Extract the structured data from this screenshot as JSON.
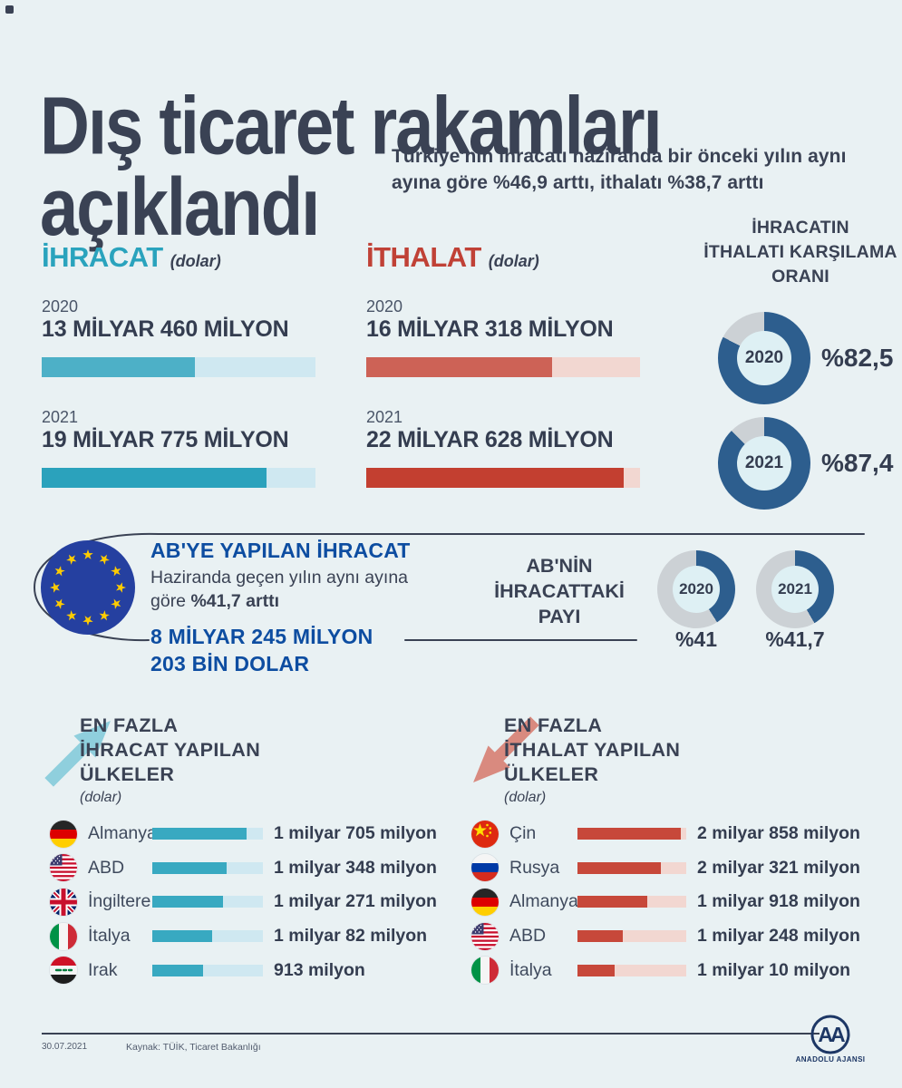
{
  "header": {
    "title_line1": "Dış ticaret rakamları",
    "title_line2": "açıklandı",
    "subtitle": "Türkiye'nin ihracatı haziranda bir önceki yılın aynı ayına göre %46,9 arttı, ithalatı %38,7 arttı"
  },
  "exports": {
    "label": "İHRACAT",
    "unit": "(dolar)",
    "years": [
      {
        "year": "2020",
        "value": "13 MİLYAR 460 MİLYON",
        "pct": 56
      },
      {
        "year": "2021",
        "value": "19 MİLYAR 775 MİLYON",
        "pct": 82
      }
    ]
  },
  "imports": {
    "label": "İTHALAT",
    "unit": "(dolar)",
    "years": [
      {
        "year": "2020",
        "value": "16 MİLYAR 318 MİLYON",
        "pct": 68
      },
      {
        "year": "2021",
        "value": "22 MİLYAR 628 MİLYON",
        "pct": 94
      }
    ]
  },
  "coverage": {
    "title_lines": [
      "İHRACATIN",
      "İTHALATI KARŞILAMA",
      "ORANI"
    ],
    "items": [
      {
        "year": "2020",
        "label": "%82,5",
        "pct": 82.5
      },
      {
        "year": "2021",
        "label": "%87,4",
        "pct": 87.4
      }
    ]
  },
  "eu": {
    "title": "AB'YE YAPILAN İHRACAT",
    "desc_normal": "Haziranda geçen yılın aynı ayına göre ",
    "desc_bold": "%41,7 arttı",
    "amount_line1": "8 MİLYAR 245 MİLYON",
    "amount_line2": "203 BİN DOLAR",
    "share_title_lines": [
      "AB'NİN",
      "İHRACATTAKİ",
      "PAYI"
    ],
    "share_items": [
      {
        "year": "2020",
        "label": "%41",
        "pct": 41
      },
      {
        "year": "2021",
        "label": "%41,7",
        "pct": 41.7
      }
    ]
  },
  "top_exports": {
    "heading_lines": [
      "EN FAZLA",
      "İHRACAT YAPILAN",
      "ÜLKELER"
    ],
    "unit": "(dolar)",
    "rows": [
      {
        "country": "Almanya",
        "value": "1 milyar 705 milyon",
        "pct": 85
      },
      {
        "country": "ABD",
        "value": "1 milyar 348 milyon",
        "pct": 67
      },
      {
        "country": "İngiltere",
        "value": "1 milyar 271 milyon",
        "pct": 64
      },
      {
        "country": "İtalya",
        "value": "1 milyar 82 milyon",
        "pct": 54
      },
      {
        "country": "Irak",
        "value": "913 milyon",
        "pct": 46
      }
    ]
  },
  "top_imports": {
    "heading_lines": [
      "EN FAZLA",
      "İTHALAT YAPILAN",
      "ÜLKELER"
    ],
    "unit": "(dolar)",
    "rows": [
      {
        "country": "Çin",
        "value": "2 milyar 858 milyon",
        "pct": 95
      },
      {
        "country": "Rusya",
        "value": "2 milyar 321 milyon",
        "pct": 77
      },
      {
        "country": "Almanya",
        "value": "1 milyar 918 milyon",
        "pct": 64
      },
      {
        "country": "ABD",
        "value": "1 milyar 248 milyon",
        "pct": 42
      },
      {
        "country": "İtalya",
        "value": "1 milyar 10 milyon",
        "pct": 34
      }
    ]
  },
  "footer": {
    "date": "30.07.2021",
    "source": "Kaynak: TÜİK, Ticaret Bakanlığı",
    "agency": "ANADOLU AJANSI",
    "agency_monogram": "AA"
  },
  "colors": {
    "background": "#e9f1f3",
    "navy": "#3a4254",
    "teal": "#2aa3bd",
    "red": "#c04136",
    "blue": "#0d4da1",
    "export_fill_2020": "#4db0c7",
    "export_fill_2021": "#2ba2bc",
    "export_track": "#cfe8f1",
    "import_fill_2020": "#cd6256",
    "import_fill_2021": "#c33f30",
    "import_track": "#f2d7d1",
    "export_row_fill": "#38a9c1",
    "import_row_fill": "#c7483a",
    "donut_fill": "#2d5e8e",
    "donut_rest": "#ccd1d5",
    "donut_hole": "#def0f4",
    "arrow_up": "#8fcfdd",
    "arrow_down": "#d98a7f",
    "eu_blue": "#2540a0",
    "eu_star": "#ffcc00"
  },
  "chart_data": [
    {
      "type": "bar",
      "title": "İHRACAT (dolar)",
      "categories": [
        "2020",
        "2021"
      ],
      "values": [
        13460,
        19775
      ],
      "unit": "milyon dolar",
      "xlim": [
        0,
        24000
      ]
    },
    {
      "type": "bar",
      "title": "İTHALAT (dolar)",
      "categories": [
        "2020",
        "2021"
      ],
      "values": [
        16318,
        22628
      ],
      "unit": "milyon dolar",
      "xlim": [
        0,
        24000
      ]
    },
    {
      "type": "pie",
      "title": "İHRACATIN İTHALATI KARŞILAMA ORANI",
      "categories": [
        "2020",
        "2021"
      ],
      "values": [
        82.5,
        87.4
      ],
      "unit": "%"
    },
    {
      "type": "pie",
      "title": "AB'NİN İHRACATTAKİ PAYI",
      "categories": [
        "2020",
        "2021"
      ],
      "values": [
        41,
        41.7
      ],
      "unit": "%"
    },
    {
      "type": "bar",
      "title": "EN FAZLA İHRACAT YAPILAN ÜLKELER (dolar)",
      "categories": [
        "Almanya",
        "ABD",
        "İngiltere",
        "İtalya",
        "Irak"
      ],
      "values": [
        1705,
        1348,
        1271,
        1082,
        913
      ],
      "unit": "milyon dolar",
      "xlim": [
        0,
        2000
      ]
    },
    {
      "type": "bar",
      "title": "EN FAZLA İTHALAT YAPILAN ÜLKELER (dolar)",
      "categories": [
        "Çin",
        "Rusya",
        "Almanya",
        "ABD",
        "İtalya"
      ],
      "values": [
        2858,
        2321,
        1918,
        1248,
        1010
      ],
      "unit": "milyon dolar",
      "xlim": [
        0,
        3000
      ]
    }
  ]
}
